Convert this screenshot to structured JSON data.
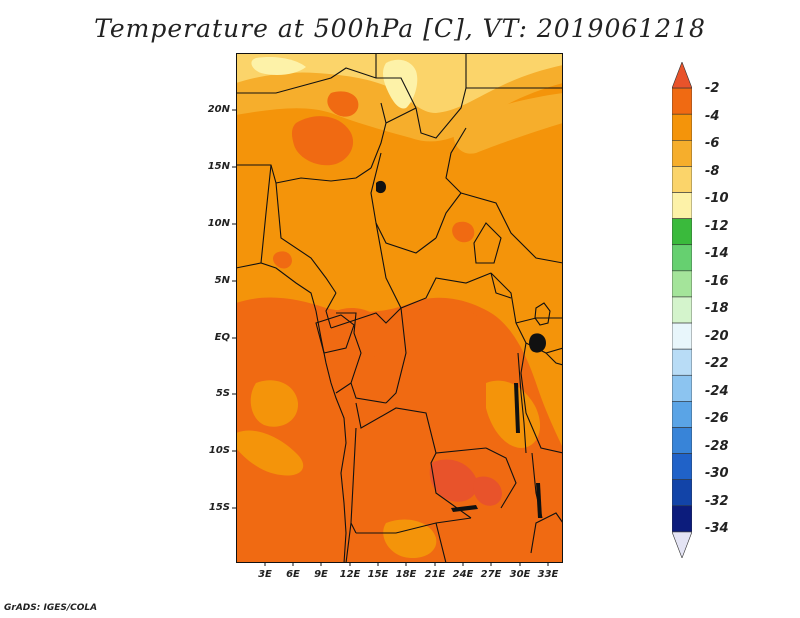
{
  "title": "Temperature at 500hPa [C], VT: 2019061218",
  "credit": "GrADS: IGES/COLA",
  "lat_labels": [
    "20N",
    "15N",
    "10N",
    "5N",
    "EQ",
    "5S",
    "10S",
    "15S"
  ],
  "lon_labels": [
    "3E",
    "6E",
    "9E",
    "12E",
    "15E",
    "18E",
    "21E",
    "24E",
    "27E",
    "30E",
    "33E"
  ],
  "colorbar": {
    "labels": [
      "-2",
      "-4",
      "-6",
      "-8",
      "-10",
      "-12",
      "-14",
      "-16",
      "-18",
      "-20",
      "-22",
      "-24",
      "-26",
      "-28",
      "-30",
      "-32",
      "-34"
    ],
    "colors": [
      "#e8532b",
      "#f06a12",
      "#f4940a",
      "#f6ae2c",
      "#fbd46a",
      "#fdf2a8",
      "#3aba3c",
      "#66d070",
      "#a4e49a",
      "#d4f4cc",
      "#e8f6fb",
      "#b8dcf6",
      "#8cc4f0",
      "#5aa4e6",
      "#3884d8",
      "#2062c8",
      "#1244a8",
      "#0c1c7c",
      "#e4e4f4"
    ]
  },
  "map_colors": {
    "deep_orange": "#f06a12",
    "orange": "#f4940a",
    "light_orange": "#f6ae2c",
    "yellow": "#fbd46a",
    "pale_yellow": "#fdf2a8"
  }
}
